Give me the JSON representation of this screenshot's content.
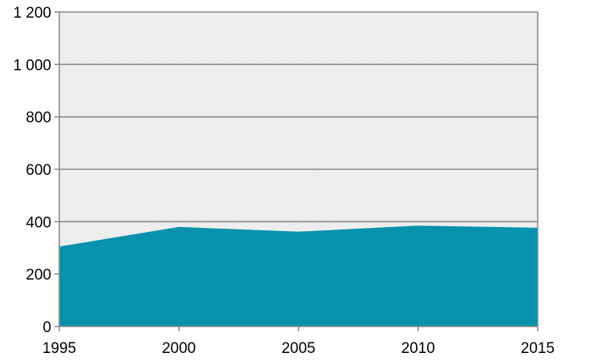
{
  "chart_data": {
    "type": "area",
    "x": [
      1995,
      2000,
      2005,
      2010,
      2015
    ],
    "x_tick_labels": [
      "1995",
      "2000",
      "2005",
      "2010",
      "2015"
    ],
    "series": [
      {
        "values": [
          305,
          380,
          362,
          385,
          377
        ],
        "color": "#0892ae"
      }
    ],
    "y_ticks": [
      0,
      200,
      400,
      600,
      800,
      1000,
      1200
    ],
    "y_tick_labels": [
      "0",
      "200",
      "400",
      "600",
      "800",
      "1 000",
      "1 200"
    ],
    "xlim": [
      1995,
      2015
    ],
    "ylim": [
      0,
      1200
    ],
    "grid": "horizontal",
    "plot_background": "#efefef",
    "title": "",
    "xlabel": "",
    "ylabel": ""
  }
}
